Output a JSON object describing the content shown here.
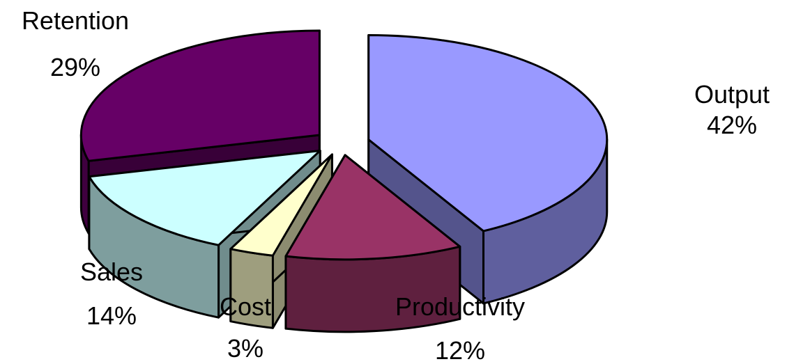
{
  "chart_data": {
    "type": "pie",
    "three_d": true,
    "exploded": true,
    "categories": [
      "Output",
      "Retention",
      "Sales",
      "Cost",
      "Productivity"
    ],
    "values": [
      42,
      29,
      14,
      3,
      12
    ],
    "value_format": "percent",
    "colors": [
      "#9999ff",
      "#660066",
      "#ccffff",
      "#ffffcc",
      "#993366"
    ],
    "labels": [
      {
        "name": "Output",
        "value": "42%"
      },
      {
        "name": "Retention",
        "value": "29%"
      },
      {
        "name": "Sales",
        "value": "14%"
      },
      {
        "name": "Cost",
        "value": "3%"
      },
      {
        "name": "Productivity",
        "value": "12%"
      }
    ],
    "legend": "none"
  }
}
